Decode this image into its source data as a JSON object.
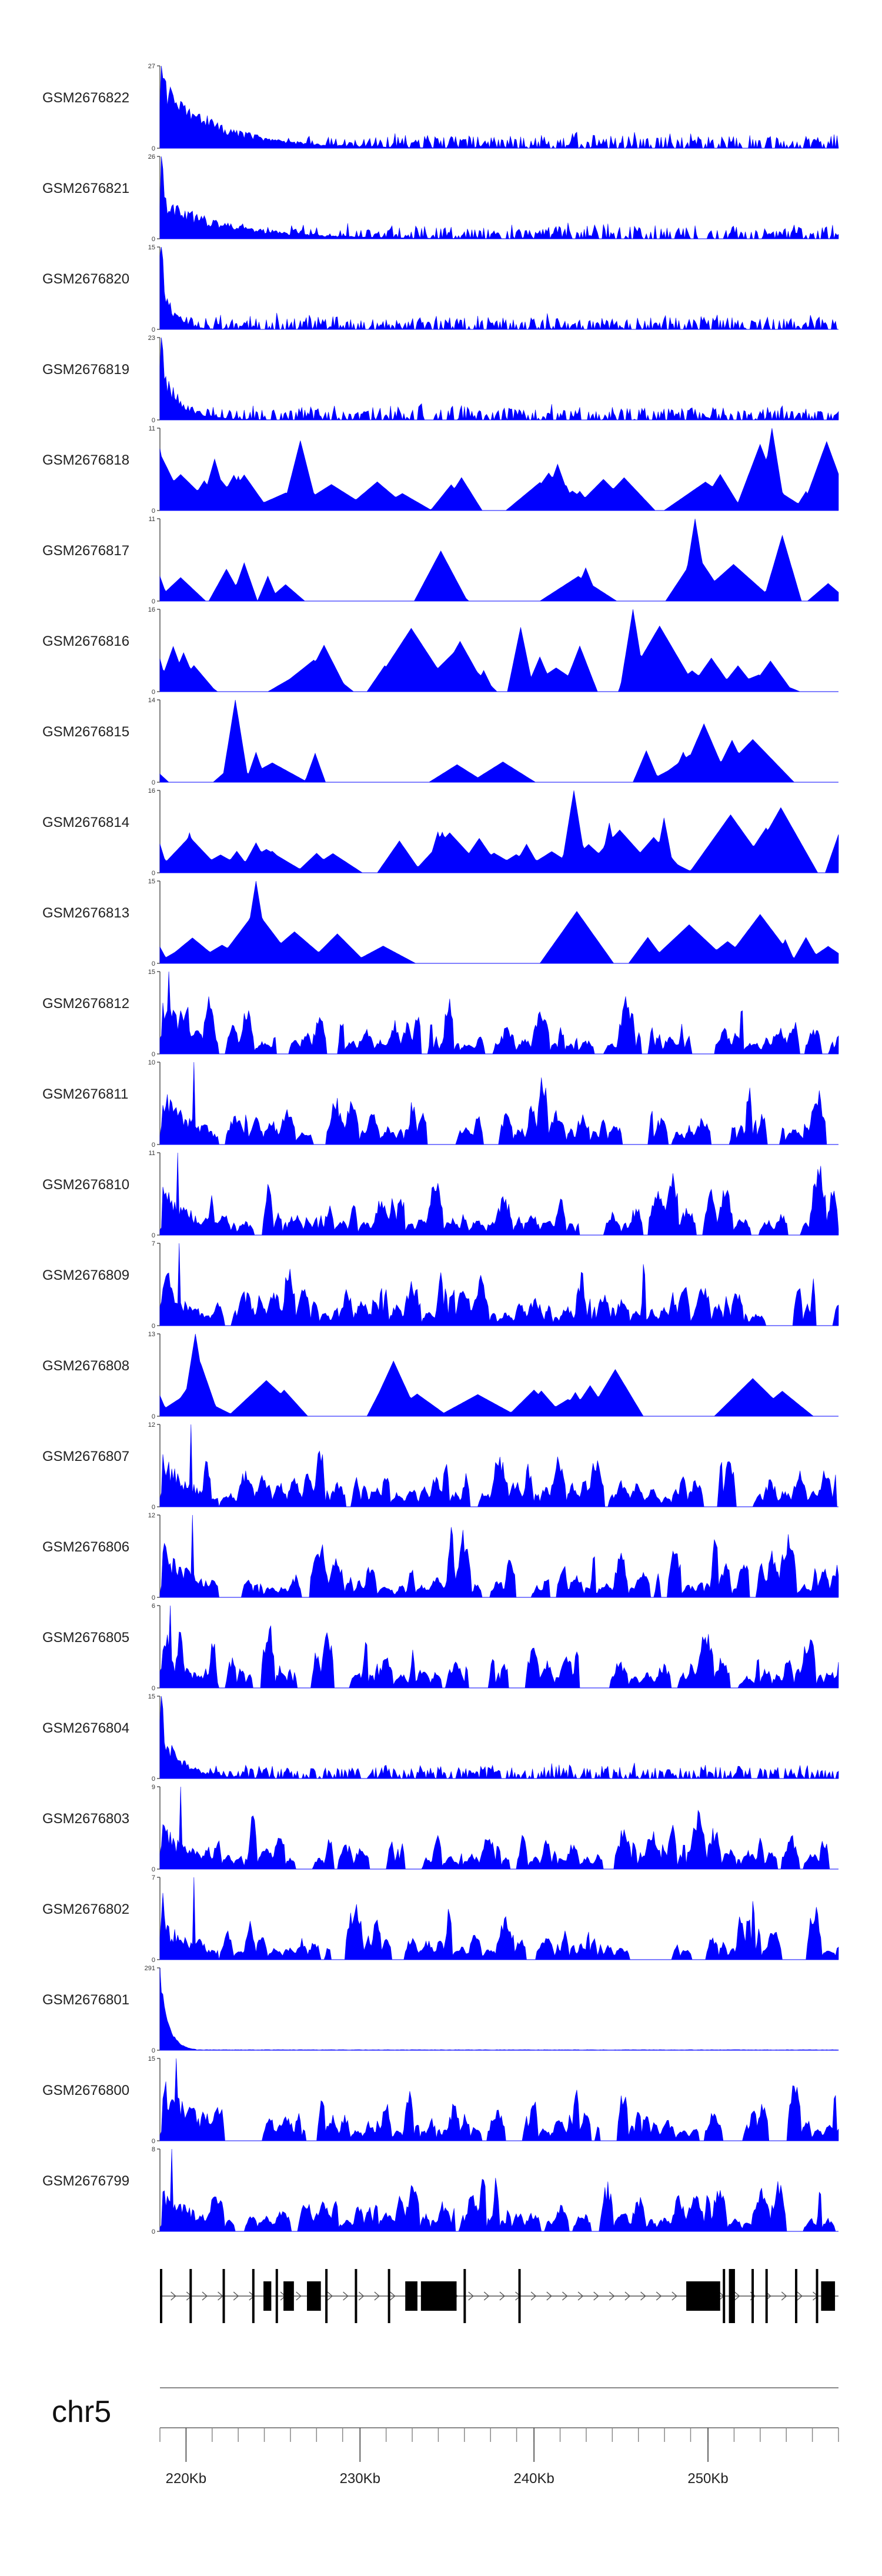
{
  "colors": {
    "signal": "#0000ff",
    "axis": "#555555",
    "gene": "#000000",
    "ideogram": "#888888"
  },
  "chart_data": {
    "type": "area",
    "title": "",
    "xlabel": "",
    "ylabel": "",
    "x_range_kb": [
      218.5,
      257.5
    ],
    "tracks": [
      {
        "name": "GSM2676822",
        "max": 27,
        "min": 0,
        "style": "dense",
        "seed": 1,
        "early": 0.95,
        "decay": 0.012
      },
      {
        "name": "GSM2676821",
        "max": 26,
        "min": 0,
        "style": "dense",
        "seed": 2,
        "early": 0.55,
        "decay": 0.01
      },
      {
        "name": "GSM2676820",
        "max": 15,
        "min": 0,
        "style": "dense",
        "seed": 3,
        "early": 0.9,
        "decay": 0.06
      },
      {
        "name": "GSM2676819",
        "max": 23,
        "min": 0,
        "style": "dense",
        "seed": 4,
        "early": 0.85,
        "decay": 0.035
      },
      {
        "name": "GSM2676818",
        "max": 11,
        "min": 0,
        "style": "sparse",
        "seed": 5,
        "npeaks": 38,
        "early": 0.75
      },
      {
        "name": "GSM2676817",
        "max": 11,
        "min": 0,
        "style": "sparse",
        "seed": 6,
        "npeaks": 14,
        "early": 0.3
      },
      {
        "name": "GSM2676816",
        "max": 16,
        "min": 0,
        "style": "sparse",
        "seed": 7,
        "npeaks": 32,
        "early": 0.4
      },
      {
        "name": "GSM2676815",
        "max": 14,
        "min": 0,
        "style": "sparse",
        "seed": 8,
        "npeaks": 13,
        "early": 0.1
      },
      {
        "name": "GSM2676814",
        "max": 16,
        "min": 0,
        "style": "sparse",
        "seed": 9,
        "npeaks": 40,
        "early": 0.35
      },
      {
        "name": "GSM2676813",
        "max": 15,
        "min": 0,
        "style": "sparse",
        "seed": 10,
        "npeaks": 18,
        "early": 0.2
      },
      {
        "name": "GSM2676812",
        "max": 15,
        "min": 0,
        "style": "medium",
        "seed": 11,
        "early": 0.85
      },
      {
        "name": "GSM2676811",
        "max": 10,
        "min": 0,
        "style": "medium",
        "seed": 12,
        "early": 0.75
      },
      {
        "name": "GSM2676810",
        "max": 11,
        "min": 0,
        "style": "medium",
        "seed": 13,
        "early": 0.7
      },
      {
        "name": "GSM2676809",
        "max": 7,
        "min": 0,
        "style": "medium",
        "seed": 14,
        "early": 0.6
      },
      {
        "name": "GSM2676808",
        "max": 13,
        "min": 0,
        "style": "sparse",
        "seed": 15,
        "npeaks": 22,
        "early": 0.25
      },
      {
        "name": "GSM2676807",
        "max": 12,
        "min": 0,
        "style": "medium",
        "seed": 16,
        "early": 0.7
      },
      {
        "name": "GSM2676806",
        "max": 12,
        "min": 0,
        "style": "medium",
        "seed": 17,
        "early": 0.75
      },
      {
        "name": "GSM2676805",
        "max": 6,
        "min": 0,
        "style": "medium",
        "seed": 18,
        "early": 0.5
      },
      {
        "name": "GSM2676804",
        "max": 15,
        "min": 0,
        "style": "dense",
        "seed": 19,
        "early": 0.7,
        "decay": 0.03
      },
      {
        "name": "GSM2676803",
        "max": 9,
        "min": 0,
        "style": "medium",
        "seed": 20,
        "early": 0.6
      },
      {
        "name": "GSM2676802",
        "max": 7,
        "min": 0,
        "style": "medium",
        "seed": 21,
        "early": 0.55
      },
      {
        "name": "GSM2676801",
        "max": 291,
        "min": 0,
        "style": "spike",
        "seed": 22
      },
      {
        "name": "GSM2676800",
        "max": 15,
        "min": 0,
        "style": "medium",
        "seed": 23,
        "early": 0.9
      },
      {
        "name": "GSM2676799",
        "max": 8,
        "min": 0,
        "style": "medium",
        "seed": 24,
        "early": 0.65
      }
    ],
    "gene_track": {
      "blocks_kb": [
        [
          218.5,
          218.62
        ],
        [
          220.2,
          220.32
        ],
        [
          222.1,
          222.22
        ],
        [
          223.8,
          223.92
        ],
        [
          224.45,
          224.9
        ],
        [
          225.15,
          225.27
        ],
        [
          225.6,
          226.2
        ],
        [
          226.95,
          227.75
        ],
        [
          228.0,
          228.12
        ],
        [
          229.7,
          229.82
        ],
        [
          231.6,
          231.72
        ],
        [
          232.6,
          233.3
        ],
        [
          233.5,
          235.55
        ],
        [
          235.95,
          236.07
        ],
        [
          239.1,
          239.22
        ],
        [
          248.75,
          250.7
        ],
        [
          250.85,
          250.97
        ],
        [
          251.2,
          251.55
        ],
        [
          252.5,
          252.62
        ],
        [
          253.3,
          253.42
        ],
        [
          255.0,
          255.12
        ],
        [
          256.2,
          256.32
        ],
        [
          256.5,
          257.3
        ]
      ],
      "strand": "+"
    },
    "chromosome": "chr5",
    "x_ticks_kb": [
      220,
      230,
      240,
      250
    ],
    "x_tick_labels": [
      "220Kb",
      "230Kb",
      "240Kb",
      "250Kb"
    ],
    "minor_ticks_kb": [
      218.5,
      220,
      221.5,
      223,
      224.5,
      226,
      227.5,
      229,
      230,
      231.5,
      233,
      234.5,
      236,
      237.5,
      239,
      240,
      241.5,
      243,
      244.5,
      246,
      247.5,
      249,
      250,
      251.5,
      253,
      254.5,
      256,
      257.5
    ]
  }
}
